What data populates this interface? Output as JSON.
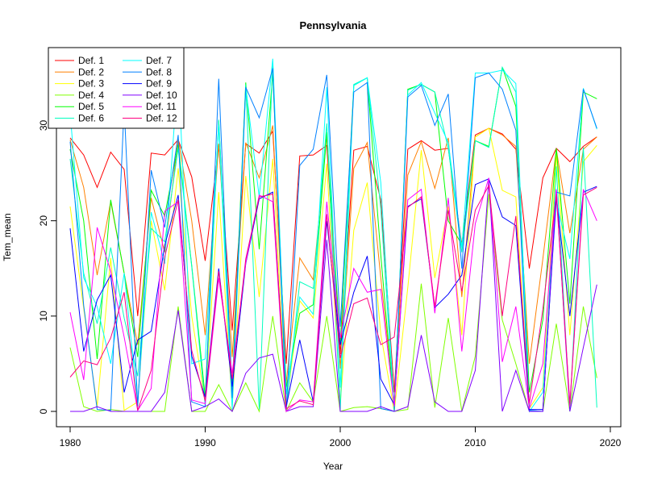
{
  "chart_data": {
    "type": "line",
    "title": "Pennsylvania",
    "xlabel": "Year",
    "ylabel": "Tem_mean",
    "xlim": [
      1980,
      2019
    ],
    "ylim": [
      0,
      37
    ],
    "xticks": [
      1980,
      1990,
      2000,
      2010,
      2020
    ],
    "yticks": [
      0,
      10,
      20,
      30
    ],
    "grid": false,
    "legend_position": "top-left",
    "legend_columns": 2,
    "x": [
      1980,
      1981,
      1982,
      1983,
      1984,
      1985,
      1986,
      1987,
      1988,
      1989,
      1990,
      1991,
      1992,
      1993,
      1994,
      1995,
      1996,
      1997,
      1998,
      1999,
      2000,
      2001,
      2002,
      2003,
      2004,
      2005,
      2006,
      2007,
      2008,
      2009,
      2010,
      2011,
      2012,
      2013,
      2014,
      2015,
      2016,
      2017,
      2018,
      2019
    ],
    "series": [
      {
        "name": "Def. 1",
        "color": "#ff0000",
        "values": [
          28.7,
          26.9,
          23.5,
          27.2,
          25.4,
          10,
          27.1,
          26.9,
          28.5,
          24.6,
          15.8,
          27.9,
          8.5,
          28.1,
          27.1,
          29.4,
          5,
          26.8,
          26.9,
          27.9,
          6,
          27.4,
          27.8,
          22.2,
          2,
          27.5,
          28.4,
          27.4,
          27.6,
          17.5,
          29,
          29.7,
          29.1,
          27.5,
          15,
          24.5,
          27.6,
          26.2,
          27.8,
          28.8
        ]
      },
      {
        "name": "Def. 2",
        "color": "#ff8000",
        "values": [
          28.5,
          23.5,
          14.3,
          22,
          14.5,
          7,
          22.4,
          16.7,
          28.6,
          20,
          8,
          28.1,
          5.7,
          28.2,
          24.5,
          30,
          3,
          16.1,
          13.8,
          28.9,
          4.5,
          25.5,
          28.2,
          14,
          1,
          24.8,
          28.3,
          23.4,
          28.7,
          12,
          28.8,
          29.7,
          29,
          27.8,
          5,
          16,
          27.5,
          18.7,
          27.5,
          28.8
        ]
      },
      {
        "name": "Def. 3",
        "color": "#ffff00",
        "values": [
          21.5,
          10.8,
          0.5,
          16.1,
          0.1,
          1,
          20,
          12.7,
          25.5,
          10,
          1,
          23,
          0.5,
          24.7,
          12,
          26.5,
          0.5,
          11.6,
          9.8,
          26,
          0.8,
          19,
          24,
          8.1,
          0,
          13,
          27.4,
          14,
          21.5,
          8,
          28.8,
          29.7,
          23.2,
          22.5,
          0.3,
          2.5,
          27,
          8,
          26.2,
          27.9
        ]
      },
      {
        "name": "Def. 4",
        "color": "#80ff00",
        "values": [
          6.7,
          0.5,
          0,
          0.2,
          0,
          0,
          0,
          0,
          11,
          0,
          0,
          2.8,
          0,
          3,
          0,
          10,
          0,
          3,
          1,
          10,
          0,
          0.4,
          0.5,
          0.3,
          0,
          0.2,
          13.4,
          0.4,
          9.8,
          0,
          5.8,
          22.8,
          9.6,
          5,
          0,
          0,
          9.2,
          0,
          11,
          3.5
        ]
      },
      {
        "name": "Def. 5",
        "color": "#00ff00",
        "values": [
          27.5,
          20,
          5.5,
          22.2,
          14.5,
          5.7,
          23.2,
          20.5,
          28,
          15.3,
          1.5,
          30.5,
          2.4,
          34.5,
          17,
          35.5,
          2.5,
          10.3,
          11.2,
          29.3,
          7,
          34.2,
          35,
          16.4,
          0.1,
          33.8,
          34.3,
          33.5,
          20,
          17.5,
          28.4,
          27.8,
          36.1,
          32,
          2,
          9.6,
          27.6,
          11.3,
          33.5,
          32.8
        ]
      },
      {
        "name": "Def. 6",
        "color": "#00ffbf",
        "values": [
          26.5,
          14.5,
          9.2,
          17.2,
          9.8,
          3.7,
          19.2,
          17.8,
          27.6,
          15.2,
          0.6,
          30.6,
          1.5,
          34.3,
          0.2,
          36.7,
          0.1,
          13.6,
          12.9,
          30.2,
          0.1,
          34.3,
          35,
          21.3,
          0,
          33.7,
          34.3,
          33.5,
          27.6,
          16.7,
          28.4,
          27.7,
          36.1,
          33.5,
          0.1,
          0,
          25.7,
          0,
          27.7,
          0.4
        ]
      },
      {
        "name": "Def. 7",
        "color": "#00ffff",
        "values": [
          31.3,
          14,
          11,
          5,
          14.5,
          0.9,
          20.9,
          15.5,
          36,
          5,
          5.5,
          30,
          0.2,
          34,
          22.5,
          37,
          1.8,
          12,
          10.2,
          34,
          2.5,
          34.2,
          35,
          24,
          0.3,
          33.2,
          34.5,
          31.3,
          28.2,
          17.2,
          35.5,
          35.5,
          35.8,
          34.4,
          0,
          2,
          22,
          16,
          33.9,
          29.6
        ]
      },
      {
        "name": "Def. 8",
        "color": "#0080ff",
        "values": [
          28.3,
          11.1,
          0.2,
          0.1,
          32,
          0.5,
          25.3,
          19.3,
          29,
          1,
          0.5,
          34.9,
          1.4,
          34,
          30.8,
          36,
          0.1,
          25.8,
          27.5,
          35.3,
          8.9,
          33.5,
          34.5,
          0.3,
          0,
          33,
          34.2,
          30,
          33.3,
          15,
          35,
          35.5,
          33.8,
          29.5,
          0.1,
          0,
          23,
          22.6,
          33.8,
          29.7
        ]
      },
      {
        "name": "Def. 9",
        "color": "#0000ff",
        "values": [
          19.2,
          6.3,
          11.7,
          14.3,
          2,
          7.5,
          8.4,
          17.4,
          22.7,
          5.8,
          1.5,
          15,
          2.6,
          15.5,
          22.3,
          23,
          0.5,
          7.5,
          1,
          20,
          7,
          12.5,
          16.3,
          3.4,
          0.7,
          21.5,
          22.3,
          10.9,
          12.3,
          14.3,
          23.8,
          24.4,
          20.4,
          19.5,
          0.2,
          0.2,
          22.5,
          10,
          23,
          23.6
        ]
      },
      {
        "name": "Def. 10",
        "color": "#8000ff",
        "values": [
          0,
          0,
          0.5,
          0,
          0,
          0,
          0,
          2,
          10.6,
          0,
          0.5,
          1.3,
          0,
          4,
          5.6,
          6,
          0,
          0.5,
          0.5,
          18,
          0,
          0,
          0,
          0.5,
          0,
          0.5,
          8,
          1,
          0,
          0,
          4.3,
          24.4,
          0,
          4.3,
          0,
          0,
          23.3,
          0,
          6.7,
          13.3
        ]
      },
      {
        "name": "Def. 11",
        "color": "#ff00ff",
        "values": [
          10.4,
          3.3,
          19.3,
          14.7,
          7.8,
          0.1,
          2.4,
          21,
          22,
          1.2,
          0.8,
          14,
          4,
          15.6,
          22.7,
          22,
          0,
          1.2,
          1,
          22,
          7.7,
          15,
          12.5,
          12.8,
          0.5,
          22.2,
          23.3,
          10.3,
          22.4,
          6.3,
          19.7,
          24.5,
          5.2,
          11,
          0.3,
          5,
          23.3,
          0.5,
          23.3,
          20
        ]
      },
      {
        "name": "Def. 12",
        "color": "#ff0080",
        "values": [
          3.6,
          5.3,
          4.9,
          7.7,
          12.5,
          0.1,
          4.3,
          16.2,
          22.2,
          6.4,
          1.1,
          14.7,
          3.4,
          16,
          22.5,
          22.8,
          0.3,
          1.1,
          0.7,
          20.7,
          5.6,
          11.3,
          11.9,
          7,
          7.8,
          21.4,
          22.5,
          11,
          21.1,
          12.6,
          21.1,
          23.7,
          10,
          20.5,
          0.8,
          10.7,
          22.8,
          0.8,
          22.7,
          23.5
        ]
      }
    ]
  }
}
